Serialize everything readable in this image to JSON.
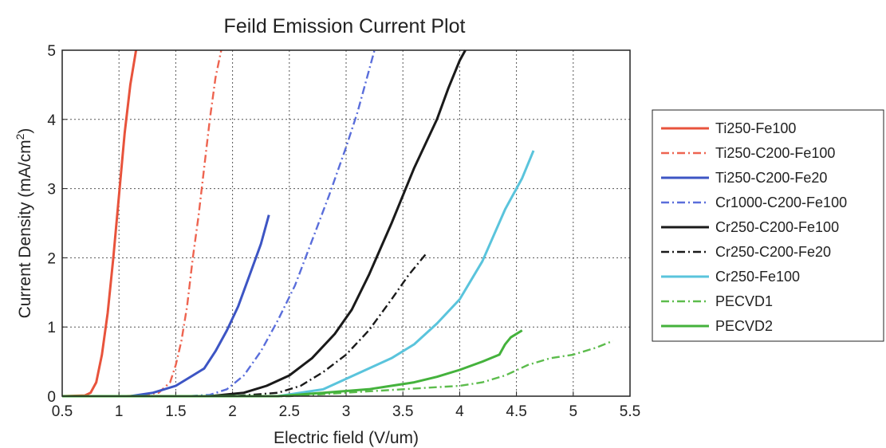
{
  "chart_data": {
    "type": "line",
    "title": "Feild Emission Current Plot",
    "xlabel": "Electric field (V/um)",
    "ylabel": "Current Density (mA/cm",
    "ylabel_sup": "2",
    "ylabel_end": ")",
    "xlim": [
      0.5,
      5.5
    ],
    "ylim": [
      0,
      5
    ],
    "xticks": [
      "0.5",
      "1",
      "1.5",
      "2",
      "2.5",
      "3",
      "3.5",
      "4",
      "4.5",
      "5",
      "5.5"
    ],
    "yticks": [
      "0",
      "1",
      "2",
      "3",
      "4",
      "5"
    ],
    "grid": true,
    "legend_position": "right",
    "series": [
      {
        "name": "Ti250-Fe100",
        "color": "#e8533c",
        "style": "solid",
        "x": [
          0.5,
          0.7,
          0.75,
          0.8,
          0.85,
          0.9,
          0.95,
          1.0,
          1.05,
          1.1,
          1.15
        ],
        "y": [
          0,
          0.01,
          0.05,
          0.2,
          0.6,
          1.2,
          2.0,
          2.9,
          3.8,
          4.5,
          5.0
        ]
      },
      {
        "name": "Ti250-C200-Fe100",
        "color": "#ee6450",
        "style": "dashdot",
        "x": [
          0.5,
          1.0,
          1.2,
          1.35,
          1.45,
          1.5,
          1.55,
          1.6,
          1.65,
          1.7,
          1.75,
          1.8,
          1.85,
          1.9
        ],
        "y": [
          0,
          0,
          0.01,
          0.05,
          0.2,
          0.45,
          0.8,
          1.3,
          2.0,
          2.6,
          3.3,
          4.0,
          4.6,
          5.0
        ]
      },
      {
        "name": "Ti250-C200-Fe20",
        "color": "#3d55c4",
        "style": "solid",
        "x": [
          0.5,
          1.1,
          1.3,
          1.5,
          1.65,
          1.75,
          1.85,
          1.95,
          2.05,
          2.15,
          2.25,
          2.32
        ],
        "y": [
          0,
          0,
          0.05,
          0.15,
          0.3,
          0.4,
          0.65,
          0.95,
          1.3,
          1.75,
          2.2,
          2.62
        ]
      },
      {
        "name": "Cr1000-C200-Fe100",
        "color": "#5a6edb",
        "style": "dashdot",
        "x": [
          0.5,
          1.6,
          1.8,
          1.95,
          2.1,
          2.25,
          2.4,
          2.55,
          2.7,
          2.85,
          3.0,
          3.1,
          3.2,
          3.25
        ],
        "y": [
          0,
          0,
          0.02,
          0.1,
          0.3,
          0.65,
          1.1,
          1.6,
          2.25,
          2.9,
          3.6,
          4.1,
          4.7,
          5.0
        ]
      },
      {
        "name": "Cr250-C200-Fe100",
        "color": "#1a1a1a",
        "style": "solid",
        "x": [
          0.5,
          1.8,
          2.1,
          2.3,
          2.5,
          2.7,
          2.9,
          3.05,
          3.2,
          3.4,
          3.6,
          3.8,
          3.9,
          4.0,
          4.05
        ],
        "y": [
          0,
          0,
          0.05,
          0.15,
          0.3,
          0.55,
          0.9,
          1.25,
          1.75,
          2.5,
          3.3,
          4.0,
          4.45,
          4.85,
          5.0
        ]
      },
      {
        "name": "Cr250-C200-Fe20",
        "color": "#1a1a1a",
        "style": "dashdot",
        "x": [
          0.5,
          2.0,
          2.4,
          2.6,
          2.8,
          3.0,
          3.2,
          3.4,
          3.55,
          3.7
        ],
        "y": [
          0,
          0,
          0.05,
          0.15,
          0.35,
          0.6,
          0.95,
          1.4,
          1.75,
          2.05
        ]
      },
      {
        "name": "Cr250-Fe100",
        "color": "#5ac4dc",
        "style": "solid",
        "x": [
          0.5,
          2.4,
          2.8,
          3.0,
          3.2,
          3.4,
          3.6,
          3.8,
          4.0,
          4.2,
          4.4,
          4.55,
          4.65
        ],
        "y": [
          0,
          0,
          0.1,
          0.25,
          0.4,
          0.55,
          0.75,
          1.05,
          1.4,
          1.95,
          2.7,
          3.15,
          3.55
        ]
      },
      {
        "name": "PECVD1",
        "color": "#5cbc4c",
        "style": "dashdot",
        "x": [
          0.5,
          2.5,
          3.0,
          3.5,
          4.0,
          4.2,
          4.4,
          4.6,
          4.8,
          5.0,
          5.2,
          5.35
        ],
        "y": [
          0,
          0,
          0.05,
          0.1,
          0.15,
          0.2,
          0.3,
          0.45,
          0.55,
          0.6,
          0.7,
          0.8
        ]
      },
      {
        "name": "PECVD2",
        "color": "#44b23c",
        "style": "solid",
        "x": [
          0.5,
          2.4,
          2.8,
          3.2,
          3.6,
          3.8,
          4.0,
          4.2,
          4.35,
          4.4,
          4.45,
          4.55
        ],
        "y": [
          0,
          0,
          0.05,
          0.1,
          0.2,
          0.28,
          0.38,
          0.5,
          0.6,
          0.75,
          0.85,
          0.95
        ]
      }
    ]
  }
}
